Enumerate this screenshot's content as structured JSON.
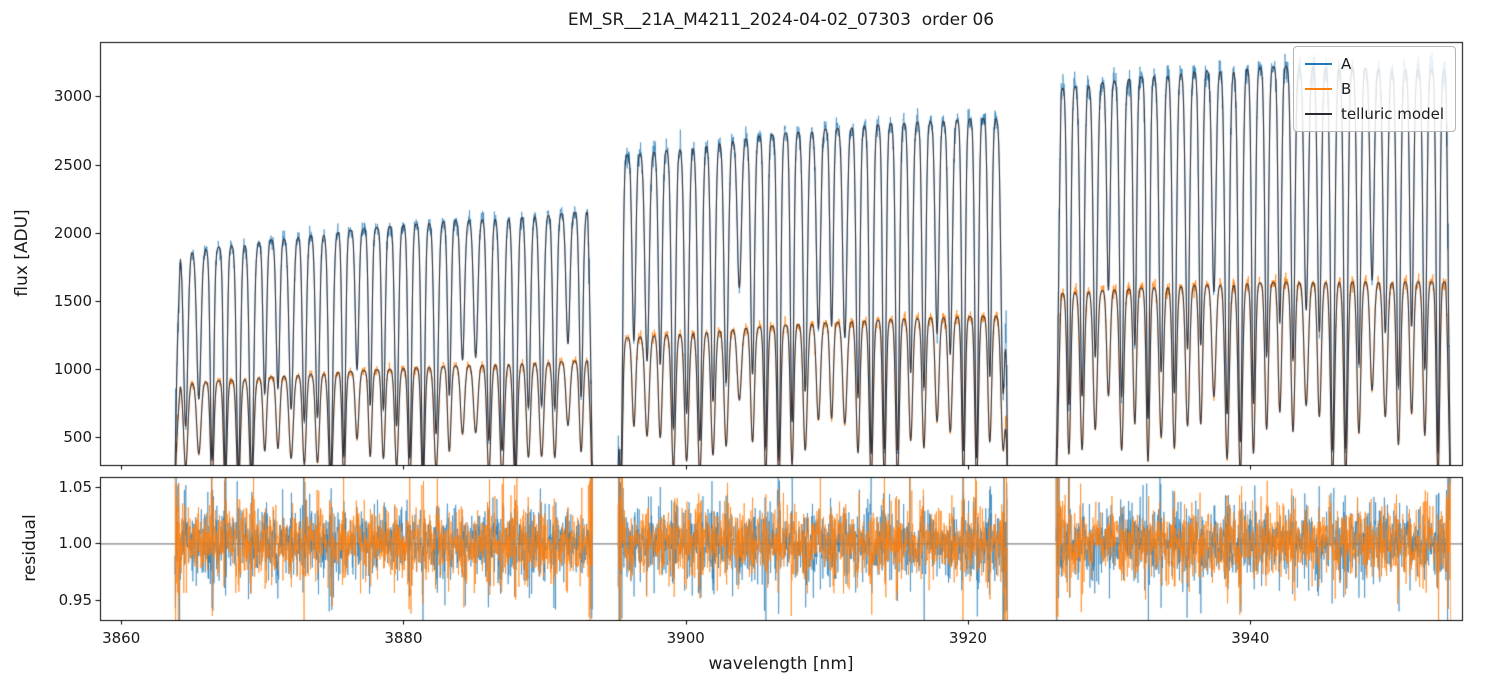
{
  "chart_data": {
    "type": "line",
    "title": "EM_SR__21A_M4211_2024-04-02_07303  order 06",
    "xlabel": "wavelength [nm]",
    "ylabel_top": "flux [ADU]",
    "ylabel_bottom": "residual",
    "grid": false,
    "background": "#ffffff",
    "xlim": [
      3858.5,
      3955.0
    ],
    "ylim_top": [
      295,
      3400
    ],
    "ylim_bottom": [
      0.932,
      1.059
    ],
    "xticks": [
      {
        "value": 3860,
        "label": "3860"
      },
      {
        "value": 3880,
        "label": "3880"
      },
      {
        "value": 3900,
        "label": "3900"
      },
      {
        "value": 3920,
        "label": "3920"
      },
      {
        "value": 3940,
        "label": "3940"
      }
    ],
    "yticks_top": [
      {
        "value": 500,
        "label": "500"
      },
      {
        "value": 1000,
        "label": "1000"
      },
      {
        "value": 1500,
        "label": "1500"
      },
      {
        "value": 2000,
        "label": "2000"
      },
      {
        "value": 2500,
        "label": "2500"
      },
      {
        "value": 3000,
        "label": "3000"
      }
    ],
    "yticks_bottom": [
      {
        "value": 0.95,
        "label": "0.95"
      },
      {
        "value": 1.0,
        "label": "1.00"
      },
      {
        "value": 1.05,
        "label": "1.05"
      }
    ],
    "legend": {
      "position": "upper right",
      "entries": [
        {
          "label": "A",
          "color": "#1f77b4"
        },
        {
          "label": "B",
          "color": "#ff7f0e"
        },
        {
          "label": "telluric model",
          "color": "#2a2a33"
        }
      ]
    },
    "series": [
      {
        "name": "A",
        "role": "spectrum",
        "color": "#1f77b4"
      },
      {
        "name": "B",
        "role": "spectrum",
        "color": "#ff7f0e"
      },
      {
        "name": "telluric model",
        "role": "model",
        "color": "#2a2a33"
      }
    ],
    "residual_reference": 1.0,
    "segments": [
      {
        "x_start": 3863.8,
        "x_end": 3893.4,
        "A_start": 1850,
        "A_end": 2160,
        "A_bow": 40,
        "B_start": 890,
        "B_end": 1065,
        "B_bow": 20
      },
      {
        "x_start": 3895.2,
        "x_end": 3922.8,
        "A_start": 2560,
        "A_end": 2850,
        "A_bow": 50,
        "B_start": 1225,
        "B_end": 1395,
        "B_bow": 25
      },
      {
        "x_start": 3926.2,
        "x_end": 3954.2,
        "A_start": 3060,
        "A_end": 3190,
        "A_bow": 90,
        "B_start": 1555,
        "B_end": 1640,
        "B_bow": 35
      }
    ],
    "telluric_lines": {
      "anchor": 3859.9,
      "spacing": 0.934,
      "depth_min": 0.35,
      "depth_max": 0.88,
      "sigma_min": 0.115,
      "sigma_max": 0.15
    },
    "noise": {
      "A_rel": 0.015,
      "B_rel": 0.016,
      "residual_base": 0.014,
      "edge_boost": 7
    }
  }
}
